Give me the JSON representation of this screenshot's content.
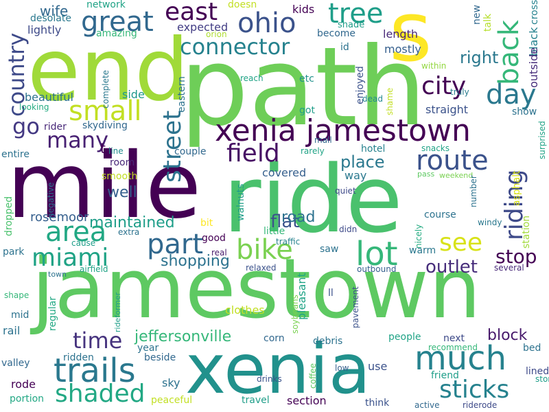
{
  "words": [
    {
      "text": "jamestown",
      "color": "#5ec962"
    },
    {
      "text": "mile",
      "color": "#440154"
    },
    {
      "text": "ride",
      "color": "#4ac16d"
    },
    {
      "text": "path",
      "color": "#6ece58"
    },
    {
      "text": "end",
      "color": "#a0da39"
    },
    {
      "text": "xenia",
      "color": "#21918c"
    },
    {
      "text": "s",
      "color": "#fde725"
    },
    {
      "text": "xenia jamestown",
      "color": "#440154"
    },
    {
      "text": "trails",
      "color": "#2a788e"
    },
    {
      "text": "much",
      "color": "#26828e"
    },
    {
      "text": "tree",
      "color": "#1f9e89"
    },
    {
      "text": "ohio",
      "color": "#3b528b"
    },
    {
      "text": "back",
      "color": "#35b779"
    },
    {
      "text": "great",
      "color": "#31688e"
    },
    {
      "text": "east",
      "color": "#440154"
    },
    {
      "text": "connector",
      "color": "#26828e"
    },
    {
      "text": "day",
      "color": "#2a788e"
    },
    {
      "text": "city",
      "color": "#440154"
    },
    {
      "text": "country",
      "color": "#3e4a89"
    },
    {
      "text": "small",
      "color": "#c2df23"
    },
    {
      "text": "street",
      "color": "#2c728e"
    },
    {
      "text": "riding",
      "color": "#3e4a89"
    },
    {
      "text": "route",
      "color": "#3b528b"
    },
    {
      "text": "field",
      "color": "#471164"
    },
    {
      "text": "lot",
      "color": "#35b779"
    },
    {
      "text": "part",
      "color": "#31688e"
    },
    {
      "text": "area",
      "color": "#22a884"
    },
    {
      "text": "bike",
      "color": "#7ad151"
    },
    {
      "text": "see",
      "color": "#d8e219"
    },
    {
      "text": "miami",
      "color": "#20a386"
    },
    {
      "text": "stop",
      "color": "#440154"
    },
    {
      "text": "shaded",
      "color": "#22a884"
    },
    {
      "text": "sticks",
      "color": "#26828e"
    },
    {
      "text": "time",
      "color": "#46337e"
    },
    {
      "text": "go",
      "color": "#443983"
    },
    {
      "text": "many",
      "color": "#482173"
    },
    {
      "text": "place",
      "color": "#2a788e"
    },
    {
      "text": "flat",
      "color": "#3b528b"
    },
    {
      "text": "maintained",
      "color": "#1f9e89"
    },
    {
      "text": "outlet",
      "color": "#472d7b"
    },
    {
      "text": "shopping",
      "color": "#2c728e"
    },
    {
      "text": "jeffersonville",
      "color": "#35b779"
    },
    {
      "text": "block",
      "color": "#481a6c"
    },
    {
      "text": "right",
      "color": "#2a788e"
    },
    {
      "text": "road",
      "color": "#2c728e"
    },
    {
      "text": "well",
      "color": "#355f8d"
    },
    {
      "text": "rosemoor",
      "color": "#355f8d"
    },
    {
      "text": "wife",
      "color": "#31688e"
    },
    {
      "text": "kids",
      "color": "#440154"
    },
    {
      "text": "network",
      "color": "#20a386"
    },
    {
      "text": "doesn",
      "color": "#c2df23"
    },
    {
      "text": "new",
      "color": "#31688e"
    },
    {
      "text": "talk",
      "color": "#b5de2b"
    },
    {
      "text": "black",
      "color": "#26828e"
    },
    {
      "text": "outside",
      "color": "#472d7b"
    },
    {
      "text": "lightly",
      "color": "#3e4a89"
    },
    {
      "text": "desolate",
      "color": "#2a788e"
    },
    {
      "text": "amazing",
      "color": "#35b779"
    },
    {
      "text": "expected",
      "color": "#433e85"
    },
    {
      "text": "orion",
      "color": "#addc30"
    },
    {
      "text": "shade",
      "color": "#1f9e89"
    },
    {
      "text": "become",
      "color": "#31688e"
    },
    {
      "text": "id",
      "color": "#2c728e"
    },
    {
      "text": "length",
      "color": "#482878"
    },
    {
      "text": "mostly",
      "color": "#355f8d"
    },
    {
      "text": "crosses",
      "color": "#26828e"
    },
    {
      "text": "within",
      "color": "#93d741"
    },
    {
      "text": "truly",
      "color": "#287c8e"
    },
    {
      "text": "eastern",
      "color": "#2c728e"
    },
    {
      "text": "reach",
      "color": "#20a386"
    },
    {
      "text": "etc",
      "color": "#21918c"
    },
    {
      "text": "enjoyed",
      "color": "#3b528b"
    },
    {
      "text": "dead",
      "color": "#23898e"
    },
    {
      "text": "shame",
      "color": "#c2df23"
    },
    {
      "text": "beautiful",
      "color": "#2c728e"
    },
    {
      "text": "complete",
      "color": "#2a788e"
    },
    {
      "text": "looking",
      "color": "#25ab82"
    },
    {
      "text": "side",
      "color": "#1f988b"
    },
    {
      "text": "straight",
      "color": "#3b528b"
    },
    {
      "text": "show",
      "color": "#2c728e"
    },
    {
      "text": "rider",
      "color": "#482878"
    },
    {
      "text": "skydiving",
      "color": "#31688e"
    },
    {
      "text": "got",
      "color": "#1f9e89"
    },
    {
      "text": "surprised",
      "color": "#20a386"
    },
    {
      "text": "mall",
      "color": "#31688e"
    },
    {
      "text": "hotel",
      "color": "#26828e"
    },
    {
      "text": "snacks",
      "color": "#20a386"
    },
    {
      "text": "t",
      "color": "#440154"
    },
    {
      "text": "entire",
      "color": "#2c728e"
    },
    {
      "text": "line",
      "color": "#228c8d"
    },
    {
      "text": "rarely",
      "color": "#20a386"
    },
    {
      "text": "room",
      "color": "#482878"
    },
    {
      "text": "couple",
      "color": "#31688e"
    },
    {
      "text": "covered",
      "color": "#355f8d"
    },
    {
      "text": "pass",
      "color": "#5ec962"
    },
    {
      "text": "weekend",
      "color": "#7ad151"
    },
    {
      "text": "asphalt",
      "color": "#d8e219"
    },
    {
      "text": "way",
      "color": "#2a788e"
    },
    {
      "text": "smooth",
      "color": "#c2df23"
    },
    {
      "text": "walnuts",
      "color": "#1f9e89"
    },
    {
      "text": "negative",
      "color": "#2c728e"
    },
    {
      "text": "number",
      "color": "#2c728e"
    },
    {
      "text": "station",
      "color": "#a0da39"
    },
    {
      "text": "dropped",
      "color": "#4ac16d"
    },
    {
      "text": "course",
      "color": "#2c728e"
    },
    {
      "text": "windy",
      "color": "#2a788e"
    },
    {
      "text": "quiet",
      "color": "#3e4a89"
    },
    {
      "text": "bit",
      "color": "#fde725"
    },
    {
      "text": "little",
      "color": "#35b779"
    },
    {
      "text": "nicely",
      "color": "#25ab82"
    },
    {
      "text": "didn",
      "color": "#3e4a89"
    },
    {
      "text": "extra",
      "color": "#2c728e"
    },
    {
      "text": "good",
      "color": "#440154"
    },
    {
      "text": "cause",
      "color": "#1f9e89"
    },
    {
      "text": "traffic",
      "color": "#26828e"
    },
    {
      "text": "warm",
      "color": "#2a788e"
    },
    {
      "text": "park",
      "color": "#2c728e"
    },
    {
      "text": "real",
      "color": "#481a6c"
    },
    {
      "text": "saw",
      "color": "#2c728e"
    },
    {
      "text": "relaxed",
      "color": "#3b528b"
    },
    {
      "text": "several",
      "color": "#482878"
    },
    {
      "text": "airfield",
      "color": "#20a386"
    },
    {
      "text": "town",
      "color": "#2c728e"
    },
    {
      "text": "outbound",
      "color": "#355f8d"
    },
    {
      "text": "rideformer",
      "color": "#1f9e89"
    },
    {
      "text": "shape",
      "color": "#35b779"
    },
    {
      "text": "regular",
      "color": "#22a884"
    },
    {
      "text": "soybeans",
      "color": "#7ad151"
    },
    {
      "text": "pleasant",
      "color": "#20a386"
    },
    {
      "text": "ll",
      "color": "#3b528b"
    },
    {
      "text": "pavement",
      "color": "#3b528b"
    },
    {
      "text": "clothes",
      "color": "#c2df23"
    },
    {
      "text": "mid",
      "color": "#2c728e"
    },
    {
      "text": "rail",
      "color": "#2c728e"
    },
    {
      "text": "corn",
      "color": "#31688e"
    },
    {
      "text": "debris",
      "color": "#2c728e"
    },
    {
      "text": "people",
      "color": "#20a386"
    },
    {
      "text": "next",
      "color": "#3e4a89"
    },
    {
      "text": "year",
      "color": "#2c728e"
    },
    {
      "text": "recommend",
      "color": "#35b779"
    },
    {
      "text": "bed",
      "color": "#2c728e"
    },
    {
      "text": "valley",
      "color": "#31688e"
    },
    {
      "text": "ridden",
      "color": "#2c728e"
    },
    {
      "text": "beside",
      "color": "#31688e"
    },
    {
      "text": "low",
      "color": "#355f8d"
    },
    {
      "text": "use",
      "color": "#3b528b"
    },
    {
      "text": "friend",
      "color": "#1f9e89"
    },
    {
      "text": "lined",
      "color": "#3e4a89"
    },
    {
      "text": "storm",
      "color": "#1f9e89"
    },
    {
      "text": "rode",
      "color": "#440154"
    },
    {
      "text": "sky",
      "color": "#2c728e"
    },
    {
      "text": "drinks",
      "color": "#3b528b"
    },
    {
      "text": "coffee",
      "color": "#5ec962"
    },
    {
      "text": "portion",
      "color": "#22a884"
    },
    {
      "text": "peaceful",
      "color": "#c2df23"
    },
    {
      "text": "travel",
      "color": "#1f9e89"
    },
    {
      "text": "section",
      "color": "#440154"
    },
    {
      "text": "think",
      "color": "#3b528b"
    },
    {
      "text": "active",
      "color": "#31688e"
    },
    {
      "text": "riderode",
      "color": "#3e4a89"
    }
  ]
}
